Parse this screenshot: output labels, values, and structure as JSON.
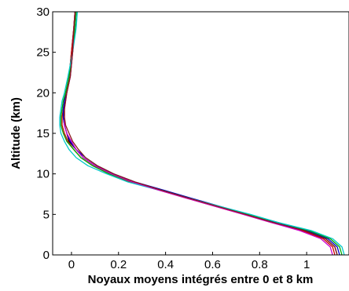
{
  "chart_data": {
    "type": "line",
    "title": "",
    "xlabel": "Noyaux moyens intégrés entre 0 et 8 km",
    "ylabel": "Altitude (km)",
    "xlim": [
      -0.08,
      1.18
    ],
    "ylim": [
      0,
      30
    ],
    "xticks": [
      0,
      0.2,
      0.4,
      0.6,
      0.8,
      1
    ],
    "xtick_labels": [
      "0",
      "0.2",
      "0.4",
      "0.6",
      "0.8",
      "1"
    ],
    "yticks": [
      0,
      5,
      10,
      15,
      20,
      25,
      30
    ],
    "ytick_labels": [
      "0",
      "5",
      "10",
      "15",
      "20",
      "25",
      "30"
    ],
    "grid": false,
    "legend": "none",
    "series": [
      {
        "color": "#000000",
        "y": [
          0,
          1,
          2,
          3,
          4,
          5,
          6,
          7,
          8,
          9,
          10,
          11,
          12,
          13,
          14,
          15,
          16,
          17,
          18,
          19,
          20,
          22,
          25,
          28,
          30
        ],
        "x": [
          1.13,
          1.12,
          1.08,
          0.99,
          0.86,
          0.74,
          0.62,
          0.5,
          0.38,
          0.26,
          0.17,
          0.1,
          0.05,
          0.02,
          -0.01,
          -0.02,
          -0.03,
          -0.035,
          -0.03,
          -0.03,
          -0.025,
          -0.01,
          0.0,
          0.01,
          0.015
        ]
      },
      {
        "color": "#cc0000",
        "y": [
          0,
          1,
          2,
          3,
          4,
          5,
          6,
          7,
          8,
          9,
          10,
          11,
          12,
          13,
          14,
          15,
          16,
          17,
          18,
          19,
          20,
          22,
          25,
          28,
          30
        ],
        "x": [
          1.12,
          1.11,
          1.07,
          0.98,
          0.85,
          0.73,
          0.61,
          0.49,
          0.37,
          0.25,
          0.16,
          0.09,
          0.04,
          0.01,
          -0.015,
          -0.03,
          -0.04,
          -0.04,
          -0.035,
          -0.03,
          -0.025,
          -0.01,
          0.0,
          0.01,
          0.015
        ]
      },
      {
        "color": "#0000cc",
        "y": [
          0,
          1,
          2,
          3,
          4,
          5,
          6,
          7,
          8,
          9,
          10,
          11,
          12,
          13,
          14,
          15,
          16,
          17,
          18,
          19,
          20,
          22,
          25,
          28,
          30
        ],
        "x": [
          1.14,
          1.13,
          1.09,
          1.0,
          0.87,
          0.75,
          0.63,
          0.51,
          0.39,
          0.27,
          0.18,
          0.11,
          0.06,
          0.02,
          -0.005,
          -0.02,
          -0.03,
          -0.035,
          -0.035,
          -0.03,
          -0.02,
          -0.005,
          0.005,
          0.015,
          0.02
        ]
      },
      {
        "color": "#00aa00",
        "y": [
          0,
          1,
          2,
          3,
          4,
          5,
          6,
          7,
          8,
          9,
          10,
          11,
          12,
          13,
          14,
          15,
          16,
          17,
          18,
          19,
          20,
          22,
          25,
          28,
          30
        ],
        "x": [
          1.15,
          1.14,
          1.1,
          1.01,
          0.88,
          0.75,
          0.62,
          0.5,
          0.38,
          0.26,
          0.16,
          0.09,
          0.04,
          0.01,
          -0.02,
          -0.035,
          -0.045,
          -0.045,
          -0.04,
          -0.035,
          -0.025,
          -0.01,
          0.005,
          0.015,
          0.02
        ]
      },
      {
        "color": "#00c8c8",
        "y": [
          0,
          1,
          2,
          3,
          4,
          5,
          6,
          7,
          8,
          9,
          10,
          11,
          12,
          13,
          14,
          15,
          16,
          17,
          18,
          19,
          20,
          22,
          25,
          28,
          30
        ],
        "x": [
          1.16,
          1.15,
          1.11,
          1.02,
          0.88,
          0.76,
          0.63,
          0.5,
          0.37,
          0.24,
          0.15,
          0.07,
          0.02,
          -0.01,
          -0.03,
          -0.045,
          -0.05,
          -0.05,
          -0.045,
          -0.04,
          -0.03,
          -0.015,
          0.005,
          0.02,
          0.025
        ]
      },
      {
        "color": "#cc00cc",
        "y": [
          0,
          1,
          2,
          3,
          4,
          5,
          6,
          7,
          8,
          9,
          10,
          11,
          12,
          13,
          14,
          15,
          16,
          17,
          18,
          19,
          20,
          22,
          25,
          28,
          30
        ],
        "x": [
          1.11,
          1.1,
          1.06,
          0.97,
          0.85,
          0.73,
          0.61,
          0.49,
          0.37,
          0.26,
          0.17,
          0.1,
          0.05,
          0.02,
          0.0,
          -0.02,
          -0.03,
          -0.03,
          -0.03,
          -0.025,
          -0.02,
          -0.005,
          0.005,
          0.01,
          0.015
        ]
      },
      {
        "color": "#8b1a1a",
        "y": [
          0,
          1,
          2,
          3,
          4,
          5,
          6,
          7,
          8,
          9,
          10,
          11,
          12,
          13,
          14,
          15,
          16,
          17,
          18,
          19,
          20,
          22,
          25,
          28,
          30
        ],
        "x": [
          1.13,
          1.12,
          1.08,
          0.99,
          0.86,
          0.74,
          0.62,
          0.5,
          0.38,
          0.27,
          0.18,
          0.11,
          0.06,
          0.03,
          0.005,
          -0.01,
          -0.025,
          -0.03,
          -0.03,
          -0.025,
          -0.02,
          -0.005,
          0.005,
          0.01,
          0.015
        ]
      }
    ]
  }
}
